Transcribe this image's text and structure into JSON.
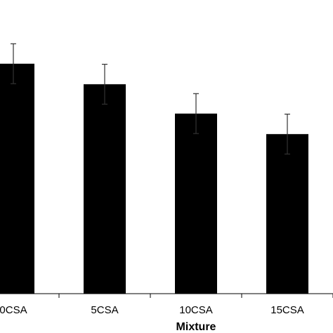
{
  "chart_data": {
    "type": "bar",
    "categories": [
      "0CSA",
      "5CSA",
      "10CSA",
      "15CSA"
    ],
    "values": [
      41.5,
      37.8,
      32.5,
      28.8
    ],
    "error": [
      3.6,
      3.6,
      3.6,
      3.6
    ],
    "xlabel": "Mixture",
    "ylim": [
      0,
      53
    ],
    "grid": false,
    "legend": "none",
    "bar_color": "#000000",
    "error_color": "#333333",
    "axis_color": "#000000"
  }
}
